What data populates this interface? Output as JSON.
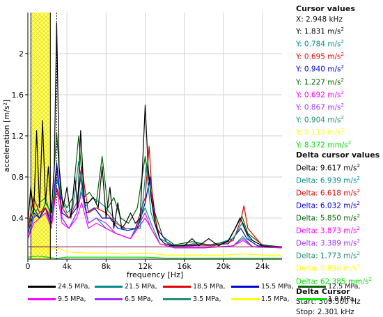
{
  "colors": {
    "s1": "#000000",
    "s2": "#008b8b",
    "s3": "#e00000",
    "s4": "#0000cd",
    "s5": "#006400",
    "s6": "#ff00ff",
    "s7": "#9b30ff",
    "s8": "#1f8f6f",
    "s9": "#ffff00",
    "s10": "#00e000",
    "cursor_band": "#ffff66",
    "grid": "#d3d3d3",
    "hline": "#800040"
  },
  "cursor_panel": {
    "title": "Cursor values",
    "x_row": "X: 2.948 kHz",
    "y_rows": [
      {
        "prefix": "Y: ",
        "value": "1.831 m/s",
        "sup": "2",
        "color_key": "s1"
      },
      {
        "prefix": "Y: ",
        "value": "0.784 m/s",
        "sup": "2",
        "color_key": "s2"
      },
      {
        "prefix": "Y: ",
        "value": "0.695 m/s",
        "sup": "2",
        "color_key": "s3"
      },
      {
        "prefix": "Y: ",
        "value": "0.940 m/s",
        "sup": "2",
        "color_key": "s4"
      },
      {
        "prefix": "Y: ",
        "value": "1.227 m/s",
        "sup": "2",
        "color_key": "s5"
      },
      {
        "prefix": "Y: ",
        "value": "0.692 m/s",
        "sup": "2",
        "color_key": "s6"
      },
      {
        "prefix": "Y: ",
        "value": "0.867 m/s",
        "sup": "2",
        "color_key": "s7"
      },
      {
        "prefix": "Y: ",
        "value": "0.904 m/s",
        "sup": "2",
        "color_key": "s8"
      },
      {
        "prefix": "Y: ",
        "value": "0.113 m/s",
        "sup": "2",
        "color_key": "s9"
      },
      {
        "prefix": "Y: ",
        "value": "8.372 mm/s",
        "sup": "2",
        "color_key": "s10"
      }
    ],
    "delta_title": "Delta cursor values",
    "delta_rows": [
      {
        "prefix": "Delta: ",
        "value": "9.617 m/s",
        "sup": "2",
        "color_key": "s1"
      },
      {
        "prefix": "Delta: ",
        "value": "6.939 m/s",
        "sup": "2",
        "color_key": "s2"
      },
      {
        "prefix": "Delta: ",
        "value": "6.618 m/s",
        "sup": "2",
        "color_key": "s3"
      },
      {
        "prefix": "Delta: ",
        "value": "6.032 m/s",
        "sup": "2",
        "color_key": "s4"
      },
      {
        "prefix": "Delta: ",
        "value": "5.850 m/s",
        "sup": "2",
        "color_key": "s5"
      },
      {
        "prefix": "Delta: ",
        "value": "3.873 m/s",
        "sup": "2",
        "color_key": "s6"
      },
      {
        "prefix": "Delta: ",
        "value": "3.389 m/s",
        "sup": "2",
        "color_key": "s7"
      },
      {
        "prefix": "Delta: ",
        "value": "1.773 m/s",
        "sup": "2",
        "color_key": "s8"
      },
      {
        "prefix": "Delta: ",
        "value": "0.896 m/s",
        "sup": "2",
        "color_key": "s9"
      },
      {
        "prefix": "Delta: ",
        "value": "62.385 mm/s",
        "sup": "2",
        "color_key": "s10"
      }
    ],
    "delta_cursor_title": "Delta Cursor",
    "start_row": "Start: 309.500  Hz",
    "stop_row": "Stop: 2.301 kHz"
  },
  "chart_data": {
    "type": "line",
    "xlabel": "frequency [Hz]",
    "ylabel": "acceleration [m/s²]",
    "xlim": [
      0,
      26000
    ],
    "ylim": [
      0,
      2.4
    ],
    "x_ticks": [
      0,
      4000,
      8000,
      12000,
      16000,
      20000,
      24000
    ],
    "x_tick_labels": [
      "0",
      "4k",
      "8k",
      "12k",
      "16k",
      "20k",
      "24k"
    ],
    "y_ticks": [
      0.4,
      0.8,
      1.2,
      1.6,
      2.0
    ],
    "y_tick_labels": [
      "0.4",
      "0.8",
      "1.2",
      "1.6",
      "2"
    ],
    "grid": true,
    "legend_position": "bottom",
    "cursor_x": 2948,
    "delta_cursor_start": 309.5,
    "delta_cursor_stop": 2301,
    "reference_line_y": 0.12,
    "series": [
      {
        "name": "24.5 MPa,",
        "color_key": "s1",
        "x": [
          0,
          300,
          600,
          900,
          1200,
          1500,
          1800,
          2100,
          2400,
          2700,
          2950,
          3200,
          3600,
          4000,
          4400,
          4800,
          5100,
          5400,
          5800,
          6200,
          6700,
          7200,
          7600,
          8000,
          8400,
          8800,
          9200,
          9600,
          10000,
          10500,
          11000,
          11500,
          12000,
          12300,
          12600,
          13000,
          13500,
          14000,
          15000,
          16000,
          16800,
          17500,
          18500,
          19500,
          20500,
          21200,
          21700,
          22000,
          22400,
          23000,
          24000,
          25000,
          26000
        ],
        "y": [
          0.35,
          0.7,
          0.45,
          1.25,
          0.5,
          1.35,
          0.55,
          0.9,
          0.45,
          0.9,
          2.3,
          0.9,
          0.5,
          0.7,
          0.4,
          0.8,
          0.5,
          1.25,
          0.55,
          0.55,
          0.6,
          0.5,
          0.9,
          0.4,
          0.7,
          0.3,
          0.55,
          0.3,
          0.35,
          0.45,
          0.35,
          0.4,
          1.5,
          0.9,
          0.6,
          0.35,
          0.2,
          0.15,
          0.13,
          0.13,
          0.2,
          0.13,
          0.2,
          0.13,
          0.18,
          0.3,
          0.4,
          0.35,
          0.25,
          0.18,
          0.13,
          0.12,
          0.12
        ]
      },
      {
        "name": "21.5 MPa,",
        "color_key": "s2",
        "x": [
          0,
          600,
          1200,
          1800,
          2400,
          2950,
          3400,
          4000,
          4600,
          5200,
          5800,
          6600,
          7400,
          8000,
          8800,
          9600,
          10500,
          11500,
          12100,
          12600,
          13500,
          15000,
          17000,
          19000,
          21000,
          21900,
          22600,
          24000,
          26000
        ],
        "y": [
          0.3,
          0.4,
          0.55,
          0.6,
          0.4,
          0.78,
          0.6,
          0.45,
          0.5,
          0.95,
          0.5,
          0.6,
          0.55,
          0.5,
          0.4,
          0.3,
          0.3,
          0.3,
          0.9,
          0.45,
          0.2,
          0.13,
          0.15,
          0.14,
          0.2,
          0.35,
          0.2,
          0.13,
          0.12
        ]
      },
      {
        "name": "18.5 MPa,",
        "color_key": "s3",
        "x": [
          0,
          600,
          1200,
          1800,
          2400,
          2950,
          3500,
          4200,
          5000,
          5500,
          6200,
          7000,
          8000,
          9000,
          10000,
          11000,
          12000,
          12400,
          12800,
          13500,
          15000,
          17000,
          19000,
          21000,
          21800,
          22100,
          22500,
          24000,
          26000
        ],
        "y": [
          0.3,
          0.6,
          0.45,
          0.5,
          0.4,
          0.7,
          0.5,
          0.4,
          0.55,
          0.9,
          0.45,
          0.5,
          0.45,
          0.35,
          0.3,
          0.3,
          0.6,
          1.1,
          0.5,
          0.2,
          0.13,
          0.14,
          0.13,
          0.18,
          0.38,
          0.52,
          0.3,
          0.13,
          0.12
        ]
      },
      {
        "name": "15.5 MPa,",
        "color_key": "s4",
        "x": [
          0,
          600,
          1200,
          1800,
          2400,
          2950,
          3500,
          4200,
          5000,
          5400,
          6000,
          6800,
          7600,
          8400,
          9200,
          10200,
          11200,
          12000,
          12500,
          13200,
          14500,
          16500,
          18500,
          20500,
          21800,
          22400,
          23500,
          26000
        ],
        "y": [
          0.25,
          0.45,
          0.4,
          0.5,
          0.35,
          0.94,
          0.45,
          0.4,
          0.5,
          0.8,
          0.45,
          0.5,
          0.4,
          0.4,
          0.3,
          0.28,
          0.3,
          0.55,
          0.8,
          0.3,
          0.13,
          0.13,
          0.14,
          0.15,
          0.3,
          0.2,
          0.13,
          0.12
        ]
      },
      {
        "name": "12.5 MPa,",
        "color_key": "s5",
        "x": [
          0,
          600,
          1200,
          1800,
          2400,
          2950,
          3400,
          4000,
          4600,
          5200,
          5700,
          6300,
          7000,
          7600,
          8200,
          8800,
          9500,
          10300,
          11200,
          12000,
          12500,
          13000,
          13800,
          15000,
          16800,
          18500,
          20500,
          21900,
          22500,
          24000,
          26000
        ],
        "y": [
          0.3,
          0.5,
          0.4,
          0.55,
          0.45,
          1.23,
          0.6,
          0.5,
          0.6,
          1.2,
          0.6,
          0.65,
          0.55,
          1.0,
          0.5,
          0.6,
          0.4,
          0.35,
          0.5,
          1.0,
          0.7,
          0.45,
          0.22,
          0.14,
          0.17,
          0.14,
          0.17,
          0.42,
          0.25,
          0.14,
          0.12
        ]
      },
      {
        "name": "9.5 MPa,",
        "color_key": "s6",
        "x": [
          0,
          600,
          1200,
          1800,
          2400,
          2950,
          3500,
          4200,
          5000,
          5500,
          6200,
          7000,
          8000,
          9000,
          10500,
          12000,
          12600,
          13500,
          15000,
          18000,
          21000,
          22000,
          23000,
          26000
        ],
        "y": [
          0.2,
          0.35,
          0.4,
          0.45,
          0.3,
          0.69,
          0.35,
          0.3,
          0.4,
          0.55,
          0.3,
          0.35,
          0.3,
          0.25,
          0.2,
          0.4,
          0.3,
          0.15,
          0.11,
          0.11,
          0.13,
          0.18,
          0.12,
          0.11
        ]
      },
      {
        "name": "6.5 MPa,",
        "color_key": "s7",
        "x": [
          0,
          600,
          1200,
          1800,
          2400,
          2950,
          3500,
          4200,
          5000,
          5500,
          6200,
          7000,
          8000,
          9000,
          10500,
          12000,
          12600,
          13500,
          15000,
          18000,
          21000,
          22000,
          23000,
          26000
        ],
        "y": [
          0.2,
          0.4,
          0.45,
          0.5,
          0.3,
          0.87,
          0.4,
          0.3,
          0.45,
          0.65,
          0.35,
          0.4,
          0.35,
          0.25,
          0.2,
          0.45,
          0.3,
          0.15,
          0.11,
          0.11,
          0.13,
          0.2,
          0.12,
          0.11
        ]
      },
      {
        "name": "3.5 MPa,",
        "color_key": "s8",
        "x": [
          0,
          600,
          1200,
          1800,
          2400,
          2950,
          3500,
          4200,
          5000,
          5500,
          6200,
          7000,
          8000,
          9000,
          10500,
          12000,
          12600,
          13500,
          15000,
          18000,
          21000,
          22000,
          23000,
          26000
        ],
        "y": [
          0.2,
          0.4,
          0.45,
          0.5,
          0.3,
          0.9,
          0.4,
          0.3,
          0.45,
          0.7,
          0.35,
          0.4,
          0.3,
          0.25,
          0.2,
          0.5,
          0.35,
          0.15,
          0.11,
          0.11,
          0.13,
          0.22,
          0.12,
          0.11
        ]
      },
      {
        "name": "1.5 MPa,",
        "color_key": "s9",
        "x": [
          0,
          1000,
          2000,
          2950,
          4000,
          6000,
          8000,
          10000,
          12000,
          14000,
          16000,
          18000,
          20000,
          22000,
          24000,
          26000
        ],
        "y": [
          0.05,
          0.1,
          0.08,
          0.113,
          0.07,
          0.06,
          0.06,
          0.05,
          0.06,
          0.04,
          0.04,
          0.04,
          0.04,
          0.05,
          0.04,
          0.04
        ]
      },
      {
        "name": "1.0 MPa",
        "color_key": "s10",
        "x": [
          0,
          1000,
          2000,
          2950,
          4000,
          6000,
          8000,
          10000,
          12000,
          14000,
          16000,
          18000,
          20000,
          22000,
          24000,
          26000
        ],
        "y": [
          0.02,
          0.03,
          0.02,
          0.008,
          0.02,
          0.02,
          0.02,
          0.02,
          0.02,
          0.01,
          0.01,
          0.01,
          0.01,
          0.01,
          0.01,
          0.01
        ]
      }
    ]
  }
}
